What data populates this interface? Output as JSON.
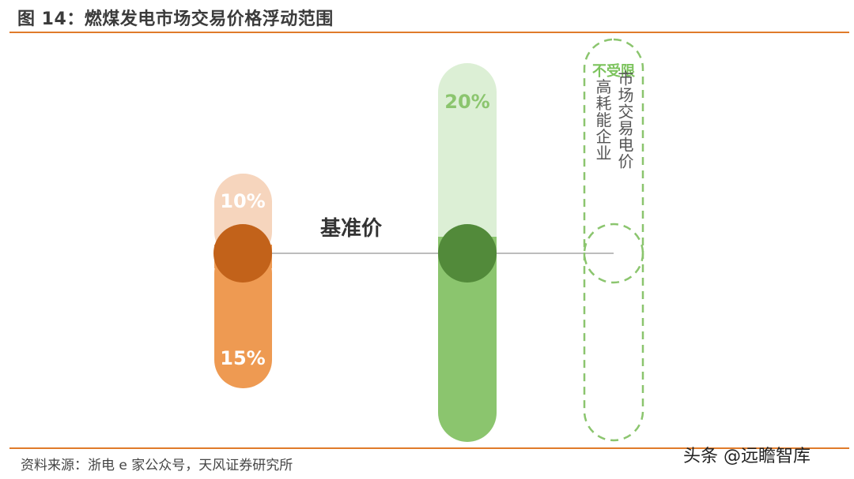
{
  "header": {
    "title": "图 14：燃煤发电市场交易价格浮动范围"
  },
  "diagram": {
    "baseline_label": "基准价",
    "coal_bar": {
      "upper_pct": "10%",
      "lower_pct": "15%",
      "color_upper": "#f6d5bd",
      "color_lower": "#ee9a52",
      "color_circle": "#c2621a"
    },
    "green_bar": {
      "upper_pct": "20%",
      "color_upper": "#dcefd5",
      "color_lower": "#8bc56e",
      "color_circle": "#528a3a"
    },
    "high_energy_bar": {
      "top_label": "不受限",
      "column_right": "市场交易电价",
      "column_left": "高耗能企业",
      "color_dash": "#8bc56e"
    }
  },
  "footer": {
    "source": "资料来源：浙电 e 家公众号，天风证券研究所",
    "watermark": "头条 @远瞻智库"
  }
}
